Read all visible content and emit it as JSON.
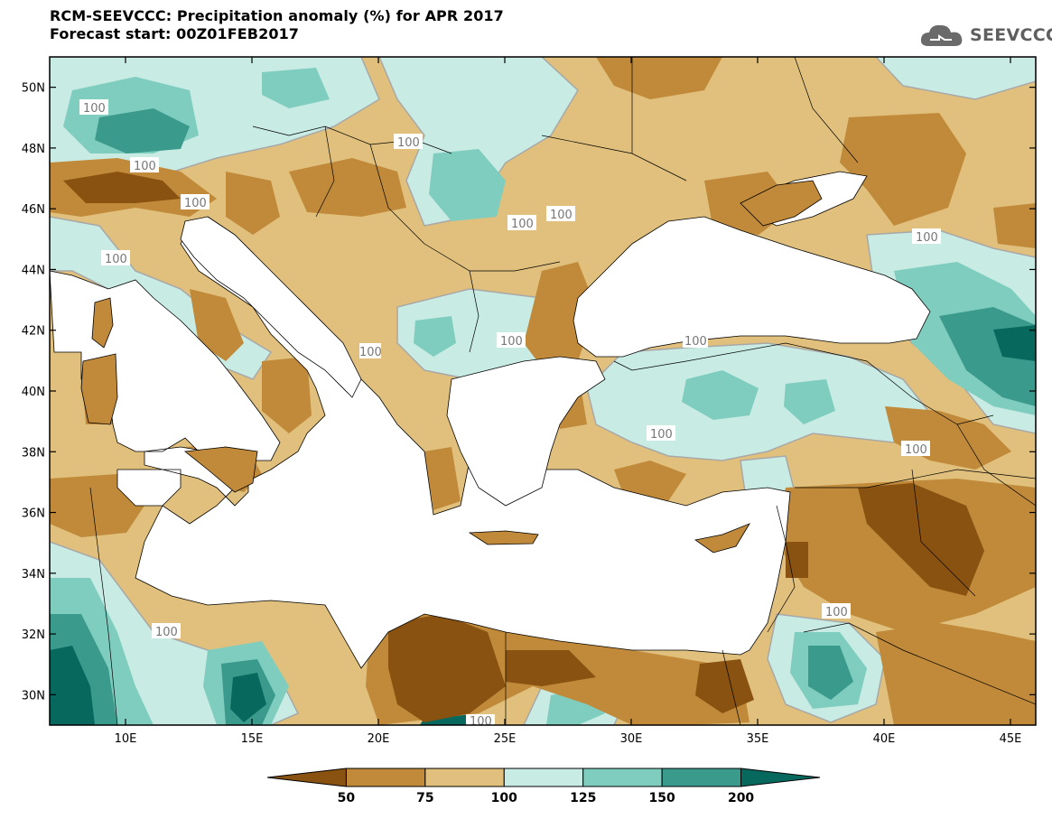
{
  "title": {
    "line1": "RCM-SEEVCCC: Precipitation anomaly (%) for APR 2017",
    "line2": "Forecast start: 00Z01FEB2017"
  },
  "logo": {
    "text": "SEEVCCC",
    "icon": "cloud-icon"
  },
  "map": {
    "lon_range": [
      7,
      46
    ],
    "lat_range": [
      29,
      51
    ],
    "lon_ticks": [
      "10E",
      "15E",
      "20E",
      "25E",
      "30E",
      "35E",
      "40E",
      "45E"
    ],
    "lat_ticks": [
      "50N",
      "48N",
      "46N",
      "44N",
      "42N",
      "40N",
      "38N",
      "36N",
      "34N",
      "32N",
      "30N"
    ],
    "contour_labels": [
      "100",
      "100",
      "100",
      "100",
      "100",
      "100",
      "100",
      "100",
      "100",
      "100",
      "100",
      "100",
      "100",
      "100",
      "100",
      "100"
    ]
  },
  "colorbar": {
    "colors": [
      "#8a5210",
      "#c08a3a",
      "#e0c07c",
      "#c8ebe3",
      "#7fcdbf",
      "#3a9a8c",
      "#07695e"
    ],
    "labels": [
      "50",
      "75",
      "100",
      "125",
      "150",
      "200"
    ]
  },
  "colors": {
    "very_dry": "#8a5210",
    "dry": "#c08a3a",
    "slightly_dry": "#e0c07c",
    "slightly_wet": "#c8ebe3",
    "wet": "#7fcdbf",
    "very_wet": "#3a9a8c",
    "extreme_wet": "#07695e",
    "sea": "#ffffff"
  }
}
